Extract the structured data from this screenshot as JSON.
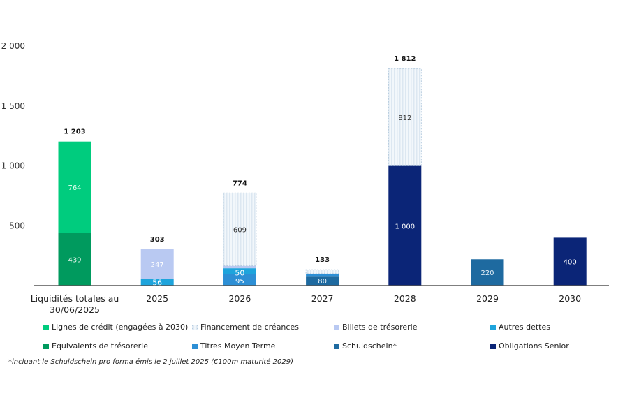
{
  "chart_data": {
    "type": "bar",
    "stacked": true,
    "title": "",
    "xlabel": "",
    "ylabel": "",
    "ylim": [
      0,
      2000
    ],
    "yticks": [
      500,
      1000,
      1500,
      2000
    ],
    "ytick_labels": [
      "500",
      "1 000",
      "1 500",
      "2 000"
    ],
    "grid": false,
    "legend_position": "bottom",
    "categories": [
      "Liquidités totales au 30/06/2025",
      "2025",
      "2026",
      "2027",
      "2028",
      "2029",
      "2030"
    ],
    "category_lines": [
      [
        "Liquidités totales au",
        "30/06/2025"
      ],
      [
        "2025"
      ],
      [
        "2026"
      ],
      [
        "2027"
      ],
      [
        "2028"
      ],
      [
        "2029"
      ],
      [
        "2030"
      ]
    ],
    "totals": [
      1203,
      303,
      774,
      133,
      1812,
      null,
      null
    ],
    "total_labels": [
      "1 203",
      "303",
      "774",
      "133",
      "1 812",
      "",
      ""
    ],
    "series": [
      {
        "name": "Equivalents de trésorerie",
        "color": "#009a5e",
        "label_color": "#e8f6ee",
        "values": [
          439,
          0,
          0,
          0,
          0,
          0,
          0
        ],
        "labels": [
          "439",
          "",
          "",
          "",
          "",
          "",
          ""
        ]
      },
      {
        "name": "Lignes de crédit (engagées à 2030)",
        "color": "#00cc7e",
        "label_color": "#e8fff3",
        "values": [
          764,
          0,
          0,
          0,
          0,
          0,
          0
        ],
        "labels": [
          "764",
          "",
          "",
          "",
          "",
          "",
          ""
        ]
      },
      {
        "name": "Obligations Senior",
        "color": "#0b2577",
        "label_color": "#ffffff",
        "values": [
          0,
          0,
          0,
          0,
          1000,
          0,
          400
        ],
        "labels": [
          "",
          "",
          "",
          "",
          "1 000",
          "",
          "400"
        ]
      },
      {
        "name": "Schuldschein*",
        "color": "#1e6aa0",
        "label_color": "#e6f0f8",
        "values": [
          0,
          0,
          0,
          80,
          0,
          220,
          0
        ],
        "labels": [
          "",
          "",
          "",
          "80",
          "",
          "220",
          ""
        ]
      },
      {
        "name": "Titres Moyen Terme",
        "color": "#2d8fd5",
        "label_color": "#ffffff",
        "values": [
          0,
          0,
          95,
          20,
          0,
          0,
          0
        ],
        "labels": [
          "",
          "",
          "95",
          "",
          "",
          "",
          ""
        ]
      },
      {
        "name": "Autres dettes",
        "color": "#1ea4dc",
        "label_color": "#ffffff",
        "values": [
          0,
          56,
          50,
          0,
          0,
          0,
          0
        ],
        "labels": [
          "",
          "56",
          "50",
          "",
          "",
          "",
          ""
        ]
      },
      {
        "name": "Billets de trésorerie",
        "color": "#b9c9f2",
        "label_color": "#ffffff",
        "values": [
          0,
          247,
          20,
          0,
          0,
          0,
          0
        ],
        "labels": [
          "",
          "247",
          "",
          "",
          "",
          "",
          ""
        ]
      },
      {
        "name": "Financement de créances",
        "color": "#e6eff6",
        "label_color": "#333333",
        "hatched": true,
        "values": [
          0,
          0,
          609,
          33,
          812,
          0,
          0
        ],
        "labels": [
          "",
          "",
          "609",
          "",
          "812",
          "",
          ""
        ]
      }
    ]
  },
  "legend": [
    {
      "label": "Lignes de crédit (engagées à 2030)",
      "color": "#00cc7e",
      "hatched": false
    },
    {
      "label": "Financement de créances",
      "color": "#e6eff6",
      "hatched": true
    },
    {
      "label": "Billets de trésorerie",
      "color": "#b9c9f2",
      "hatched": false
    },
    {
      "label": "Autres dettes",
      "color": "#1ea4dc",
      "hatched": false
    },
    {
      "label": "Equivalents de trésorerie",
      "color": "#009a5e",
      "hatched": false
    },
    {
      "label": "Titres Moyen Terme",
      "color": "#2d8fd5",
      "hatched": false
    },
    {
      "label": "Schuldschein*",
      "color": "#1e6aa0",
      "hatched": false
    },
    {
      "label": "Obligations Senior",
      "color": "#0b2577",
      "hatched": false
    }
  ],
  "footnote": "*incluant le Schuldschein pro forma émis le 2 juillet 2025 (€100m maturité 2029)"
}
